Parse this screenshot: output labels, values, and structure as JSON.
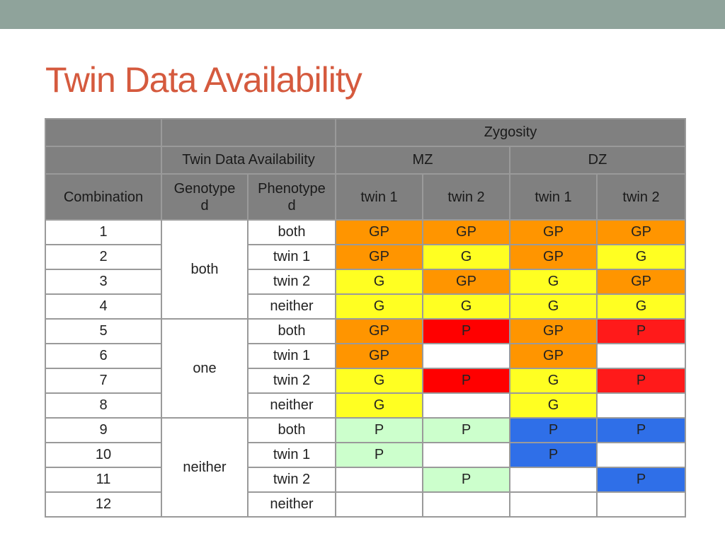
{
  "slide": {
    "title": "Twin Data Availability"
  },
  "table": {
    "header_zygosity": "Zygosity",
    "header_availability": "Twin Data Availability",
    "header_mz": "MZ",
    "header_dz": "DZ",
    "col_combination": "Combination",
    "col_genotyped": "Genotype\nd",
    "col_phenotyped": "Phenotype\nd",
    "col_twin1_mz": "twin 1",
    "col_twin2_mz": "twin 2",
    "col_twin1_dz": "twin 1",
    "col_twin2_dz": "twin 2",
    "groups": [
      {
        "genotyped": "both",
        "rows": [
          {
            "combination": "1",
            "phenotyped": "both",
            "cells": [
              {
                "v": "GP",
                "c": "orange"
              },
              {
                "v": "GP",
                "c": "orange"
              },
              {
                "v": "GP",
                "c": "orange"
              },
              {
                "v": "GP",
                "c": "orange"
              }
            ]
          },
          {
            "combination": "2",
            "phenotyped": "twin 1",
            "cells": [
              {
                "v": "GP",
                "c": "orange"
              },
              {
                "v": "G",
                "c": "yellow"
              },
              {
                "v": "GP",
                "c": "orange"
              },
              {
                "v": "G",
                "c": "yellow"
              }
            ]
          },
          {
            "combination": "3",
            "phenotyped": "twin 2",
            "cells": [
              {
                "v": "G",
                "c": "yellow"
              },
              {
                "v": "GP",
                "c": "orange"
              },
              {
                "v": "G",
                "c": "yellow"
              },
              {
                "v": "GP",
                "c": "orange"
              }
            ]
          },
          {
            "combination": "4",
            "phenotyped": "neither",
            "cells": [
              {
                "v": "G",
                "c": "yellow"
              },
              {
                "v": "G",
                "c": "yellow"
              },
              {
                "v": "G",
                "c": "yellow"
              },
              {
                "v": "G",
                "c": "yellow"
              }
            ]
          }
        ]
      },
      {
        "genotyped": "one",
        "rows": [
          {
            "combination": "5",
            "phenotyped": "both",
            "cells": [
              {
                "v": "GP",
                "c": "orange"
              },
              {
                "v": "P",
                "c": "red"
              },
              {
                "v": "GP",
                "c": "orange"
              },
              {
                "v": "P",
                "c": "red2"
              }
            ]
          },
          {
            "combination": "6",
            "phenotyped": "twin 1",
            "cells": [
              {
                "v": "GP",
                "c": "orange"
              },
              {
                "v": "",
                "c": "white"
              },
              {
                "v": "GP",
                "c": "orange"
              },
              {
                "v": "",
                "c": "white"
              }
            ]
          },
          {
            "combination": "7",
            "phenotyped": "twin 2",
            "cells": [
              {
                "v": "G",
                "c": "yellow"
              },
              {
                "v": "P",
                "c": "red"
              },
              {
                "v": "G",
                "c": "yellow"
              },
              {
                "v": "P",
                "c": "red2"
              }
            ]
          },
          {
            "combination": "8",
            "phenotyped": "neither",
            "cells": [
              {
                "v": "G",
                "c": "yellow"
              },
              {
                "v": "",
                "c": "white"
              },
              {
                "v": "G",
                "c": "yellow"
              },
              {
                "v": "",
                "c": "white"
              }
            ]
          }
        ]
      },
      {
        "genotyped": "neither",
        "rows": [
          {
            "combination": "9",
            "phenotyped": "both",
            "cells": [
              {
                "v": "P",
                "c": "mint"
              },
              {
                "v": "P",
                "c": "mint"
              },
              {
                "v": "P",
                "c": "blue"
              },
              {
                "v": "P",
                "c": "blue"
              }
            ]
          },
          {
            "combination": "10",
            "phenotyped": "twin 1",
            "cells": [
              {
                "v": "P",
                "c": "mint"
              },
              {
                "v": "",
                "c": "white"
              },
              {
                "v": "P",
                "c": "blue"
              },
              {
                "v": "",
                "c": "white"
              }
            ]
          },
          {
            "combination": "11",
            "phenotyped": "twin 2",
            "cells": [
              {
                "v": "",
                "c": "white"
              },
              {
                "v": "P",
                "c": "mint"
              },
              {
                "v": "",
                "c": "white"
              },
              {
                "v": "P",
                "c": "blue"
              }
            ]
          },
          {
            "combination": "12",
            "phenotyped": "neither",
            "cells": [
              {
                "v": "",
                "c": "white"
              },
              {
                "v": "",
                "c": "white"
              },
              {
                "v": "",
                "c": "white"
              },
              {
                "v": "",
                "c": "white"
              }
            ]
          }
        ]
      }
    ]
  },
  "colors": {
    "topbar": "#8fa39b",
    "title": "#d55a3e",
    "header_bg": "#808080",
    "orange": "#ff9500",
    "yellow": "#ffff22",
    "red": "#ff0000",
    "mint": "#ccffcc",
    "blue": "#2f6fe8"
  }
}
